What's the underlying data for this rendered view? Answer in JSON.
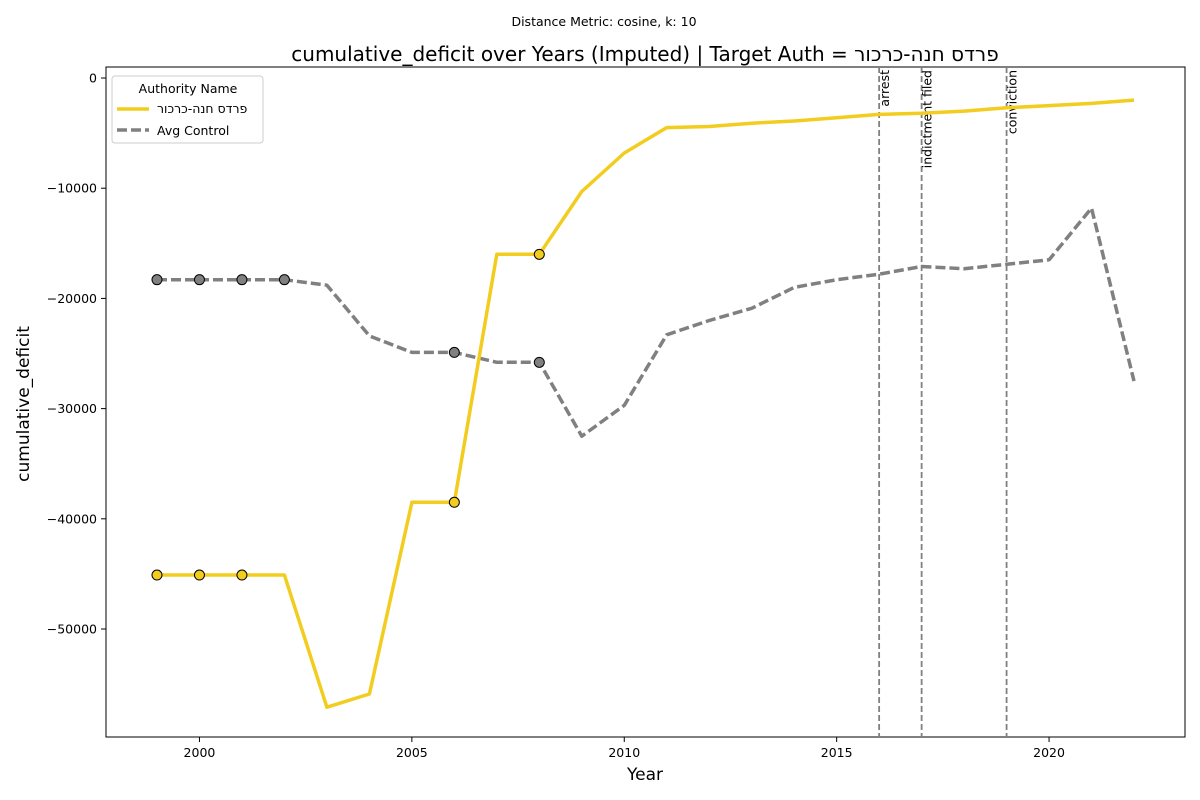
{
  "chart_data": {
    "type": "line",
    "suptitle": "Distance Metric: cosine, k: 10",
    "title": "cumulative_deficit over Years (Imputed) | Target Auth = פרדס חנה-כרכור",
    "xlabel": "Year",
    "ylabel": "cumulative_deficit",
    "xlim": [
      1997.8,
      2023.2
    ],
    "ylim": [
      -59800,
      1000
    ],
    "xticks": [
      2000,
      2005,
      2010,
      2015,
      2020
    ],
    "yticks": [
      0,
      -10000,
      -20000,
      -30000,
      -40000,
      -50000
    ],
    "grid": false,
    "legend": {
      "title": "Authority Name",
      "position": "top-left"
    },
    "x": [
      1999,
      2000,
      2001,
      2002,
      2003,
      2004,
      2005,
      2006,
      2007,
      2008,
      2009,
      2010,
      2011,
      2012,
      2013,
      2014,
      2015,
      2016,
      2017,
      2018,
      2019,
      2020,
      2021,
      2022
    ],
    "series": [
      {
        "name": "פרדס חנה-כרכור",
        "color": "#f2cd1f",
        "style": "solid",
        "values": [
          -45100,
          -45100,
          -45100,
          -45100,
          -57100,
          -55900,
          -38500,
          -38500,
          -16000,
          -16000,
          -10300,
          -6800,
          -4500,
          -4400,
          -4100,
          -3900,
          -3600,
          -3300,
          -3200,
          -3000,
          -2700,
          -2500,
          -2300,
          -2000
        ],
        "imputed_x": [
          1999,
          2000,
          2001,
          2006,
          2008
        ]
      },
      {
        "name": "Avg Control",
        "color": "#808080",
        "style": "dashed",
        "values": [
          -18300,
          -18300,
          -18300,
          -18300,
          -18800,
          -23400,
          -24900,
          -24900,
          -25800,
          -25800,
          -32500,
          -29700,
          -23300,
          -22000,
          -20900,
          -19000,
          -18300,
          -17800,
          -17100,
          -17300,
          -16900,
          -16500,
          -11800,
          -27500
        ],
        "imputed_x": [
          1999,
          2000,
          2001,
          2002,
          2006,
          2008
        ]
      }
    ],
    "events": [
      {
        "x": 2016,
        "label": "arrest"
      },
      {
        "x": 2017,
        "label": "indictment filed"
      },
      {
        "x": 2019,
        "label": "conviction"
      }
    ]
  }
}
